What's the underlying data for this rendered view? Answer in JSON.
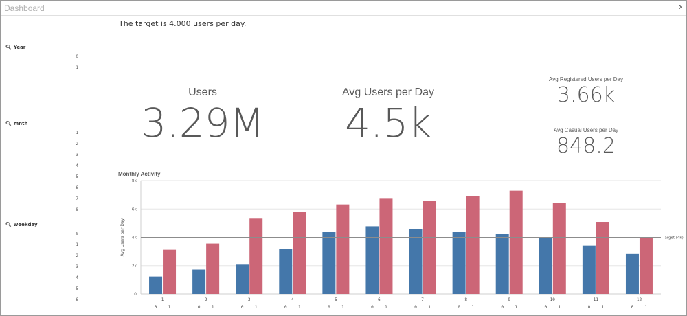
{
  "app": {
    "title": "Dashboard"
  },
  "header": {
    "target_text": "The target is 4.000 users per day."
  },
  "filters": [
    {
      "label": "Year",
      "values": [
        "0",
        "1"
      ]
    },
    {
      "label": "mnth",
      "values": [
        "1",
        "2",
        "3",
        "4",
        "5",
        "6",
        "7",
        "8"
      ]
    },
    {
      "label": "weekday",
      "values": [
        "0",
        "1",
        "2",
        "3",
        "4",
        "5",
        "6"
      ]
    }
  ],
  "kpis": {
    "users": {
      "label": "Users",
      "value": "3.29M"
    },
    "avg_users": {
      "label": "Avg Users per Day",
      "value": "4.5k"
    },
    "avg_registered": {
      "label": "Avg Registered Users per Day",
      "value": "3.66k"
    },
    "avg_casual": {
      "label": "Avg Casual Users per Day",
      "value": "848.2"
    }
  },
  "chart": {
    "title": "Monthly Activity"
  },
  "colors": {
    "series0": "#4477aa",
    "series1": "#cc6677",
    "grid": "#e6e6e6",
    "refline": "#8c8c8c"
  },
  "chart_data": {
    "type": "bar",
    "title": "Monthly Activity",
    "ylabel": "Avg Users per Day",
    "xlabel": "",
    "categories": [
      "1",
      "2",
      "3",
      "4",
      "5",
      "6",
      "7",
      "8",
      "9",
      "10",
      "11",
      "12"
    ],
    "sub_labels": [
      "0",
      "1"
    ],
    "ylim": [
      0,
      8000
    ],
    "yticks": [
      0,
      2000,
      4000,
      6000,
      8000
    ],
    "ytick_labels": [
      "0",
      "2k",
      "4k",
      "6k",
      "8k"
    ],
    "grid": true,
    "series": [
      {
        "name": "0",
        "values": [
          1230,
          1720,
          2070,
          3160,
          4380,
          4780,
          4560,
          4410,
          4250,
          3990,
          3410,
          2820
        ]
      },
      {
        "name": "1",
        "values": [
          3120,
          3560,
          5320,
          5810,
          6320,
          6770,
          6560,
          6920,
          7290,
          6410,
          5090,
          4000
        ]
      }
    ],
    "reference_line": {
      "value": 4000,
      "label": "Target (4k)"
    }
  }
}
